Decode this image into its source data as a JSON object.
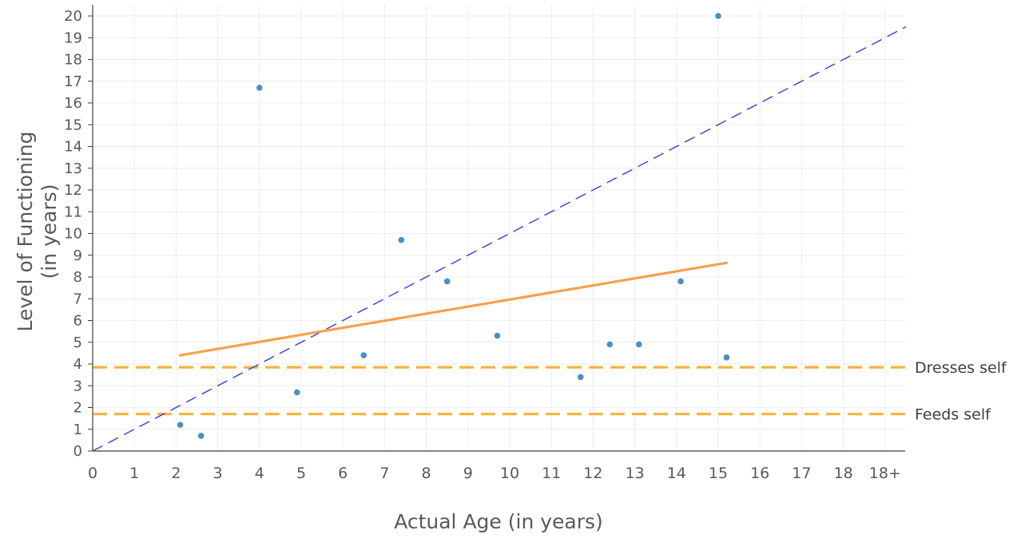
{
  "chart_data": {
    "type": "scatter",
    "title": "",
    "xlabel": "Actual Age (in years)",
    "ylabel_line1": "Level of Functioning",
    "ylabel_line2": "(in years)",
    "xlim": [
      0,
      19.5
    ],
    "ylim": [
      0,
      20.5
    ],
    "x_ticks": [
      0,
      1,
      2,
      3,
      4,
      5,
      6,
      7,
      8,
      9,
      10,
      11,
      12,
      13,
      14,
      15,
      16,
      17,
      18,
      19
    ],
    "x_tick_labels": [
      "0",
      "1",
      "2",
      "3",
      "4",
      "5",
      "6",
      "7",
      "8",
      "9",
      "10",
      "11",
      "12",
      "13",
      "14",
      "15",
      "16",
      "17",
      "18",
      "18+"
    ],
    "y_ticks": [
      0,
      1,
      2,
      3,
      4,
      5,
      6,
      7,
      8,
      9,
      10,
      11,
      12,
      13,
      14,
      15,
      16,
      17,
      18,
      19,
      20
    ],
    "grid": true,
    "points": [
      {
        "x": 2.1,
        "y": 1.2
      },
      {
        "x": 2.6,
        "y": 0.7
      },
      {
        "x": 4.0,
        "y": 16.7
      },
      {
        "x": 4.9,
        "y": 2.7
      },
      {
        "x": 6.5,
        "y": 4.4
      },
      {
        "x": 7.4,
        "y": 9.7
      },
      {
        "x": 8.5,
        "y": 7.8
      },
      {
        "x": 9.7,
        "y": 5.3
      },
      {
        "x": 11.7,
        "y": 3.4
      },
      {
        "x": 12.4,
        "y": 4.9
      },
      {
        "x": 13.1,
        "y": 4.9
      },
      {
        "x": 14.1,
        "y": 7.8
      },
      {
        "x": 15.0,
        "y": 20.0
      },
      {
        "x": 15.2,
        "y": 4.3
      }
    ],
    "trend_line": {
      "x": [
        2.1,
        15.2
      ],
      "y": [
        4.4,
        8.65
      ]
    },
    "reference_line": {
      "x": [
        0,
        19.5
      ],
      "y": [
        0,
        19.5
      ]
    },
    "thresholds": [
      {
        "label": "Dresses self",
        "y": 3.85
      },
      {
        "label": "Feeds self",
        "y": 1.7
      }
    ],
    "colors": {
      "points": "#4a90c4",
      "trend": "#f5a04e",
      "reference": "#3a3ad8",
      "threshold": "#f5b33a",
      "grid": "#ececec",
      "axis": "#404040"
    }
  }
}
